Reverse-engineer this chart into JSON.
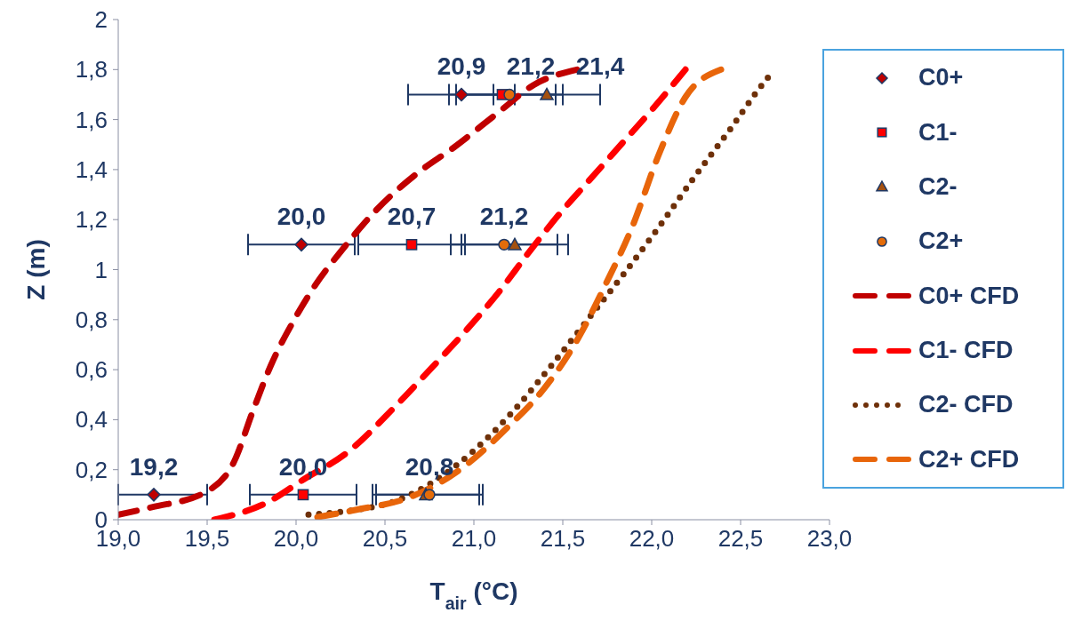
{
  "chart_data": {
    "type": "scatter",
    "xlabel": "T$_{air}$ (°C)",
    "ylabel": "Z (m)",
    "xlim": [
      19,
      23
    ],
    "xticks": [
      {
        "value": 19,
        "label": "19,0"
      },
      {
        "value": 19.5,
        "label": "19,5"
      },
      {
        "value": 20,
        "label": "20,0"
      },
      {
        "value": 20.5,
        "label": "20,5"
      },
      {
        "value": 21,
        "label": "21,0"
      },
      {
        "value": 21.5,
        "label": "21,5"
      },
      {
        "value": 22,
        "label": "22,0"
      },
      {
        "value": 22.5,
        "label": "22,5"
      },
      {
        "value": 23,
        "label": "23,0"
      }
    ],
    "ylim": [
      0,
      2
    ],
    "yticks": [
      0,
      {
        "value": 0.2,
        "label": "0,2"
      },
      {
        "value": 0.4,
        "label": "0,4"
      },
      {
        "value": 0.6,
        "label": "0,6"
      },
      {
        "value": 0.8,
        "label": "0,8"
      },
      1,
      {
        "value": 1.2,
        "label": "1,2"
      },
      {
        "value": 1.4,
        "label": "1,4"
      },
      {
        "value": 1.6,
        "label": "1,6"
      },
      {
        "value": 1.8,
        "label": "1,8"
      },
      2
    ],
    "grid": false,
    "legend": "right",
    "annotations": [
      {
        "text": "19,2",
        "x": 19.2,
        "y": 0.1
      },
      {
        "text": "20,0",
        "x": 20.04,
        "y": 0.1
      },
      {
        "text": "20,8",
        "x": 20.75,
        "y": 0.1
      },
      {
        "text": "20,0",
        "x": 20.03,
        "y": 1.1
      },
      {
        "text": "20,7",
        "x": 20.65,
        "y": 1.1
      },
      {
        "text": "21,2",
        "x": 21.17,
        "y": 1.1
      },
      {
        "text": "20,9",
        "x": 20.93,
        "y": 1.7
      },
      {
        "text": "21,2",
        "x": 21.2,
        "y": 1.7
      },
      {
        "text": "21,4",
        "x": 21.41,
        "y": 1.7
      }
    ],
    "series": [
      {
        "name": "C0+",
        "marker": "diamond",
        "color": "#c00000",
        "x": [
          19.2,
          20.03,
          20.93
        ],
        "values": [
          0.1,
          1.1,
          1.7
        ],
        "xerrors": [
          [
            19.0,
            19.5
          ],
          0.3,
          0.3
        ]
      },
      {
        "name": "C1-",
        "marker": "square",
        "color": "#ff0000",
        "x": [
          20.04,
          20.65,
          21.16
        ],
        "values": [
          0.1,
          1.1,
          1.7
        ],
        "xerrors": [
          0.3,
          0.3,
          0.3
        ]
      },
      {
        "name": "C2-",
        "marker": "triangle",
        "color": "#a5510f",
        "x": [
          20.73,
          21.23,
          21.41
        ],
        "values": [
          0.1,
          1.1,
          1.7
        ],
        "xerrors": [
          0.3,
          0.3,
          0.3
        ]
      },
      {
        "name": "C2+",
        "marker": "circle",
        "color": "#e46c0a",
        "x": [
          20.75,
          21.17,
          21.2
        ],
        "values": [
          0.1,
          1.1,
          1.7
        ],
        "xerrors": [
          0.3,
          0.3,
          0.3
        ]
      },
      {
        "name": "C0+ CFD",
        "type": "line",
        "line_style": "dashed",
        "color": "#c00000",
        "x": [
          19.0,
          19.19,
          19.49,
          19.65,
          19.76,
          19.86,
          19.99,
          20.11,
          20.26,
          20.44,
          20.69,
          20.89,
          21.14,
          21.34,
          21.58
        ],
        "values": [
          0.02,
          0.05,
          0.11,
          0.23,
          0.44,
          0.62,
          0.8,
          0.94,
          1.08,
          1.23,
          1.39,
          1.49,
          1.63,
          1.74,
          1.8
        ]
      },
      {
        "name": "C1- CFD",
        "type": "line",
        "line_style": "dashed",
        "color": "#ff0000",
        "x": [
          19.54,
          19.84,
          20.04,
          20.29,
          20.54,
          20.74,
          20.96,
          21.14,
          21.31,
          21.49,
          21.64,
          21.84,
          21.99,
          22.19
        ],
        "values": [
          0.0,
          0.07,
          0.16,
          0.27,
          0.44,
          0.59,
          0.76,
          0.91,
          1.07,
          1.23,
          1.35,
          1.51,
          1.63,
          1.8
        ]
      },
      {
        "name": "C2- CFD",
        "type": "line",
        "line_style": "dotted",
        "color": "#6e3009",
        "x": [
          20.07,
          20.34,
          20.54,
          20.79,
          20.99,
          21.19,
          21.44,
          21.64,
          21.84,
          22.04,
          22.24,
          22.44,
          22.59,
          22.69
        ],
        "values": [
          0.02,
          0.04,
          0.07,
          0.16,
          0.27,
          0.41,
          0.62,
          0.8,
          0.98,
          1.17,
          1.37,
          1.56,
          1.71,
          1.8
        ]
      },
      {
        "name": "C2+ CFD",
        "type": "line",
        "line_style": "dashed",
        "color": "#e8650a",
        "x": [
          20.12,
          20.34,
          20.64,
          20.94,
          21.19,
          21.39,
          21.59,
          21.74,
          21.89,
          22.04,
          22.19,
          22.39
        ],
        "values": [
          0.01,
          0.04,
          0.09,
          0.21,
          0.37,
          0.52,
          0.73,
          0.94,
          1.17,
          1.46,
          1.69,
          1.8
        ]
      }
    ]
  }
}
